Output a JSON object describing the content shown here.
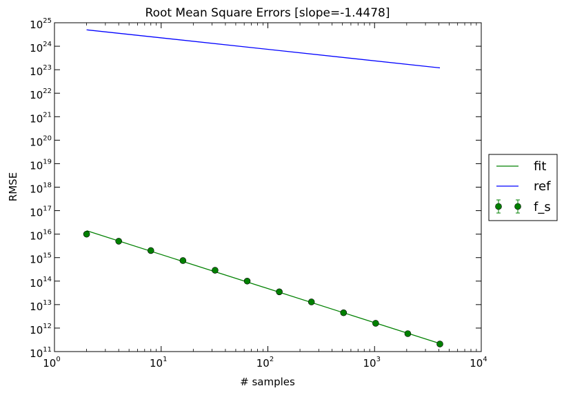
{
  "chart_data": {
    "type": "line",
    "title": "Root Mean Square Errors [slope=-1.4478]",
    "xlabel": "# samples",
    "ylabel": "RMSE",
    "xscale": "log",
    "yscale": "log",
    "xlim": [
      1,
      10000
    ],
    "ylim": [
      100000000000.0,
      1e+25
    ],
    "x_ticks": [
      {
        "base": "10",
        "exp": "0",
        "value": 1
      },
      {
        "base": "10",
        "exp": "1",
        "value": 10
      },
      {
        "base": "10",
        "exp": "2",
        "value": 100
      },
      {
        "base": "10",
        "exp": "3",
        "value": 1000
      },
      {
        "base": "10",
        "exp": "4",
        "value": 10000
      }
    ],
    "y_ticks": [
      {
        "base": "10",
        "exp": "11",
        "value": 100000000000.0
      },
      {
        "base": "10",
        "exp": "12",
        "value": 1000000000000.0
      },
      {
        "base": "10",
        "exp": "13",
        "value": 10000000000000.0
      },
      {
        "base": "10",
        "exp": "14",
        "value": 100000000000000.0
      },
      {
        "base": "10",
        "exp": "15",
        "value": 1000000000000000.0
      },
      {
        "base": "10",
        "exp": "16",
        "value": 1e+16
      },
      {
        "base": "10",
        "exp": "17",
        "value": 1e+17
      },
      {
        "base": "10",
        "exp": "18",
        "value": 1e+18
      },
      {
        "base": "10",
        "exp": "19",
        "value": 1e+19
      },
      {
        "base": "10",
        "exp": "20",
        "value": 1e+20
      },
      {
        "base": "10",
        "exp": "21",
        "value": 1e+21
      },
      {
        "base": "10",
        "exp": "22",
        "value": 1e+22
      },
      {
        "base": "10",
        "exp": "23",
        "value": 1e+23
      },
      {
        "base": "10",
        "exp": "24",
        "value": 1e+24
      },
      {
        "base": "10",
        "exp": "25",
        "value": 1e+25
      }
    ],
    "grid": false,
    "legend_position": "outside-right",
    "series": [
      {
        "name": "fit",
        "kind": "line",
        "color": "#008000",
        "x": [
          2,
          4096
        ],
        "y": [
          1.4e+16,
          220000000000.0
        ]
      },
      {
        "name": "ref",
        "kind": "line",
        "color": "#0000ff",
        "x": [
          2,
          4096
        ],
        "y": [
          5e+24,
          1.2e+23
        ]
      },
      {
        "name": "f_s",
        "kind": "scatter-errorbar",
        "color": "#008000",
        "x": [
          2,
          4,
          8,
          16,
          32,
          64,
          128,
          256,
          512,
          1024,
          2048,
          4096
        ],
        "y": [
          1e+16,
          5000000000000000.0,
          2000000000000000.0,
          750000000000000.0,
          290000000000000.0,
          100000000000000.0,
          35000000000000.0,
          13000000000000.0,
          4500000000000.0,
          1600000000000.0,
          580000000000.0,
          210000000000.0
        ]
      }
    ]
  }
}
